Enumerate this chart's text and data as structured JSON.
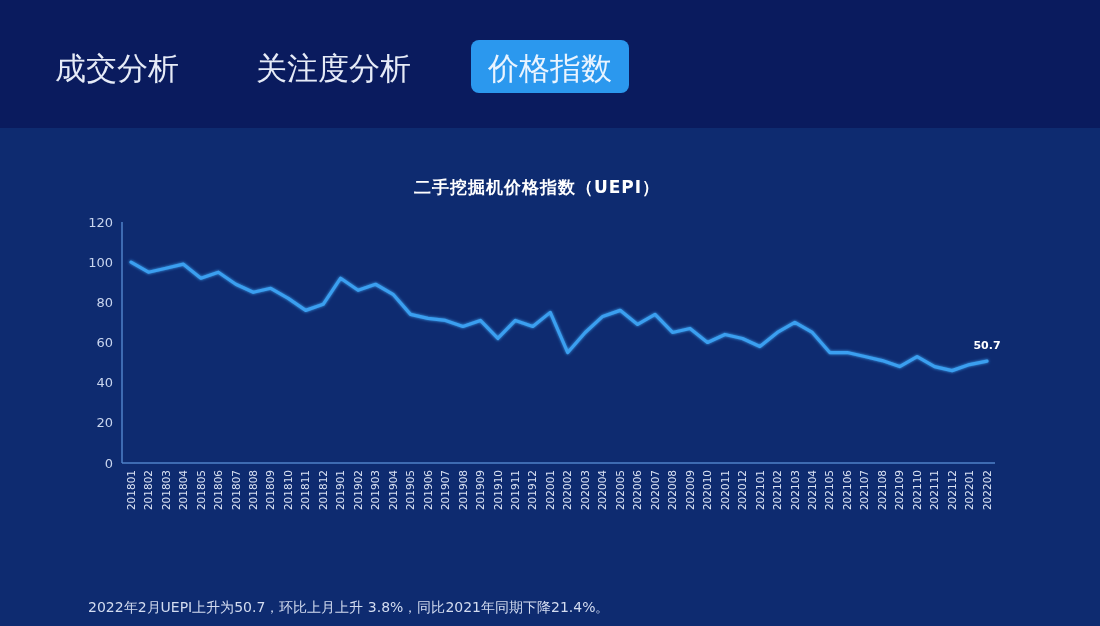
{
  "chart_data": [
    {
      "type": "other",
      "annotations": [
        "成交分析",
        "关注度分析",
        "价格指数"
      ]
    },
    {
      "type": "line",
      "title": "二手挖掘机价格指数（UEPI）",
      "categories": [
        "201801",
        "201802",
        "201803",
        "201804",
        "201805",
        "201806",
        "201807",
        "201808",
        "201809",
        "201810",
        "201811",
        "201812",
        "201901",
        "201902",
        "201903",
        "201904",
        "201905",
        "201906",
        "201907",
        "201908",
        "201909",
        "201910",
        "201911",
        "201912",
        "202001",
        "202002",
        "202003",
        "202004",
        "202005",
        "202006",
        "202007",
        "202008",
        "202009",
        "202010",
        "202011",
        "202012",
        "202101",
        "202102",
        "202103",
        "202104",
        "202105",
        "202106",
        "202107",
        "202108",
        "202109",
        "202110",
        "202111",
        "202112",
        "202201",
        "202202"
      ],
      "series": [
        {
          "color": "#3a9ff0",
          "values": [
            100,
            95,
            97,
            99,
            92,
            95,
            89,
            85,
            87,
            82,
            76,
            79,
            92,
            86,
            89,
            84,
            74,
            72,
            71,
            68,
            71,
            62,
            71,
            68,
            75,
            55,
            65,
            73,
            76,
            69,
            74,
            65,
            67,
            60,
            64,
            62,
            58,
            65,
            70,
            65,
            55,
            55,
            53,
            51,
            48,
            53,
            48,
            46,
            49,
            50.7
          ],
          "value_labels": [
            null,
            null,
            null,
            null,
            null,
            null,
            null,
            null,
            null,
            null,
            null,
            null,
            null,
            null,
            null,
            null,
            null,
            null,
            null,
            null,
            null,
            null,
            null,
            null,
            null,
            null,
            null,
            null,
            null,
            null,
            null,
            null,
            null,
            null,
            null,
            null,
            null,
            null,
            null,
            null,
            null,
            null,
            null,
            null,
            null,
            null,
            null,
            null,
            null,
            "50.7"
          ]
        }
      ],
      "ylim": [
        0,
        120
      ],
      "yticks": [
        0,
        20,
        40,
        60,
        80,
        100,
        120
      ],
      "annotations": [
        "2022年2月UEPI上升为50.7，环比上月上升 3.8%，同比2021年同期下降21.4%。"
      ]
    }
  ]
}
